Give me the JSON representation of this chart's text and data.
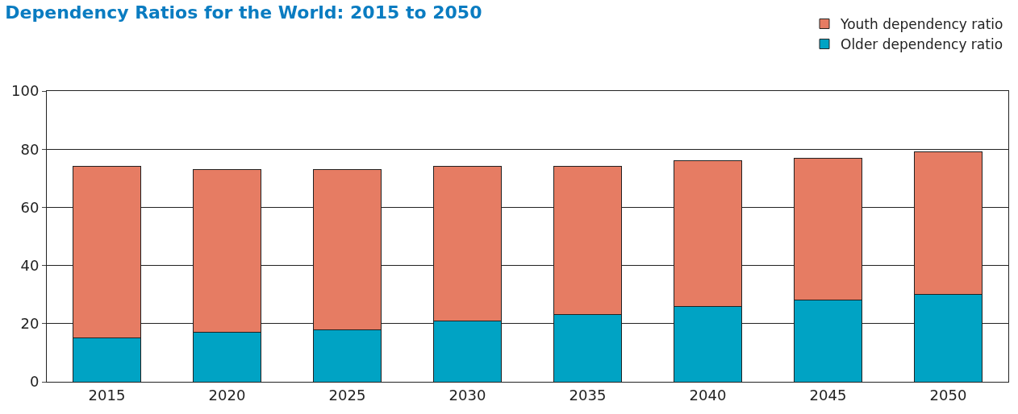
{
  "chart_data": {
    "type": "bar",
    "title": "Dependency Ratios for the World: 2015 to 2050",
    "categories": [
      "2015",
      "2020",
      "2025",
      "2030",
      "2035",
      "2040",
      "2045",
      "2050"
    ],
    "stacked": true,
    "series": [
      {
        "name": "Older dependency ratio",
        "color": "#00a3c4",
        "values": [
          15,
          17,
          18,
          21,
          23,
          26,
          28,
          30
        ]
      },
      {
        "name": "Youth dependency ratio",
        "color": "#e67c63",
        "values": [
          59,
          56,
          55,
          53,
          51,
          50,
          49,
          49
        ]
      }
    ],
    "ylim": [
      0,
      100
    ],
    "yticks": [
      0,
      20,
      40,
      60,
      80,
      100
    ],
    "grid": "y",
    "legend": "top right"
  }
}
